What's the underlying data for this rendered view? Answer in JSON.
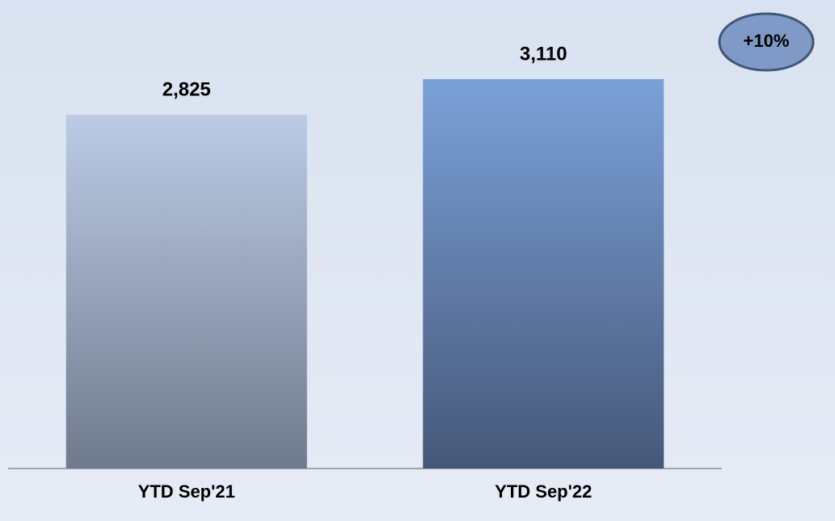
{
  "chart_data": {
    "type": "bar",
    "categories": [
      "YTD Sep'21",
      "YTD Sep'22"
    ],
    "values": [
      2825,
      3110
    ],
    "value_labels": [
      "2,825",
      "3,110"
    ],
    "colors": [
      [
        "#bccbe6",
        "#6f7a8c"
      ],
      [
        "#7ba1d8",
        "#465879"
      ]
    ],
    "ylim": [
      0,
      3500
    ],
    "annotation": "+10%"
  }
}
